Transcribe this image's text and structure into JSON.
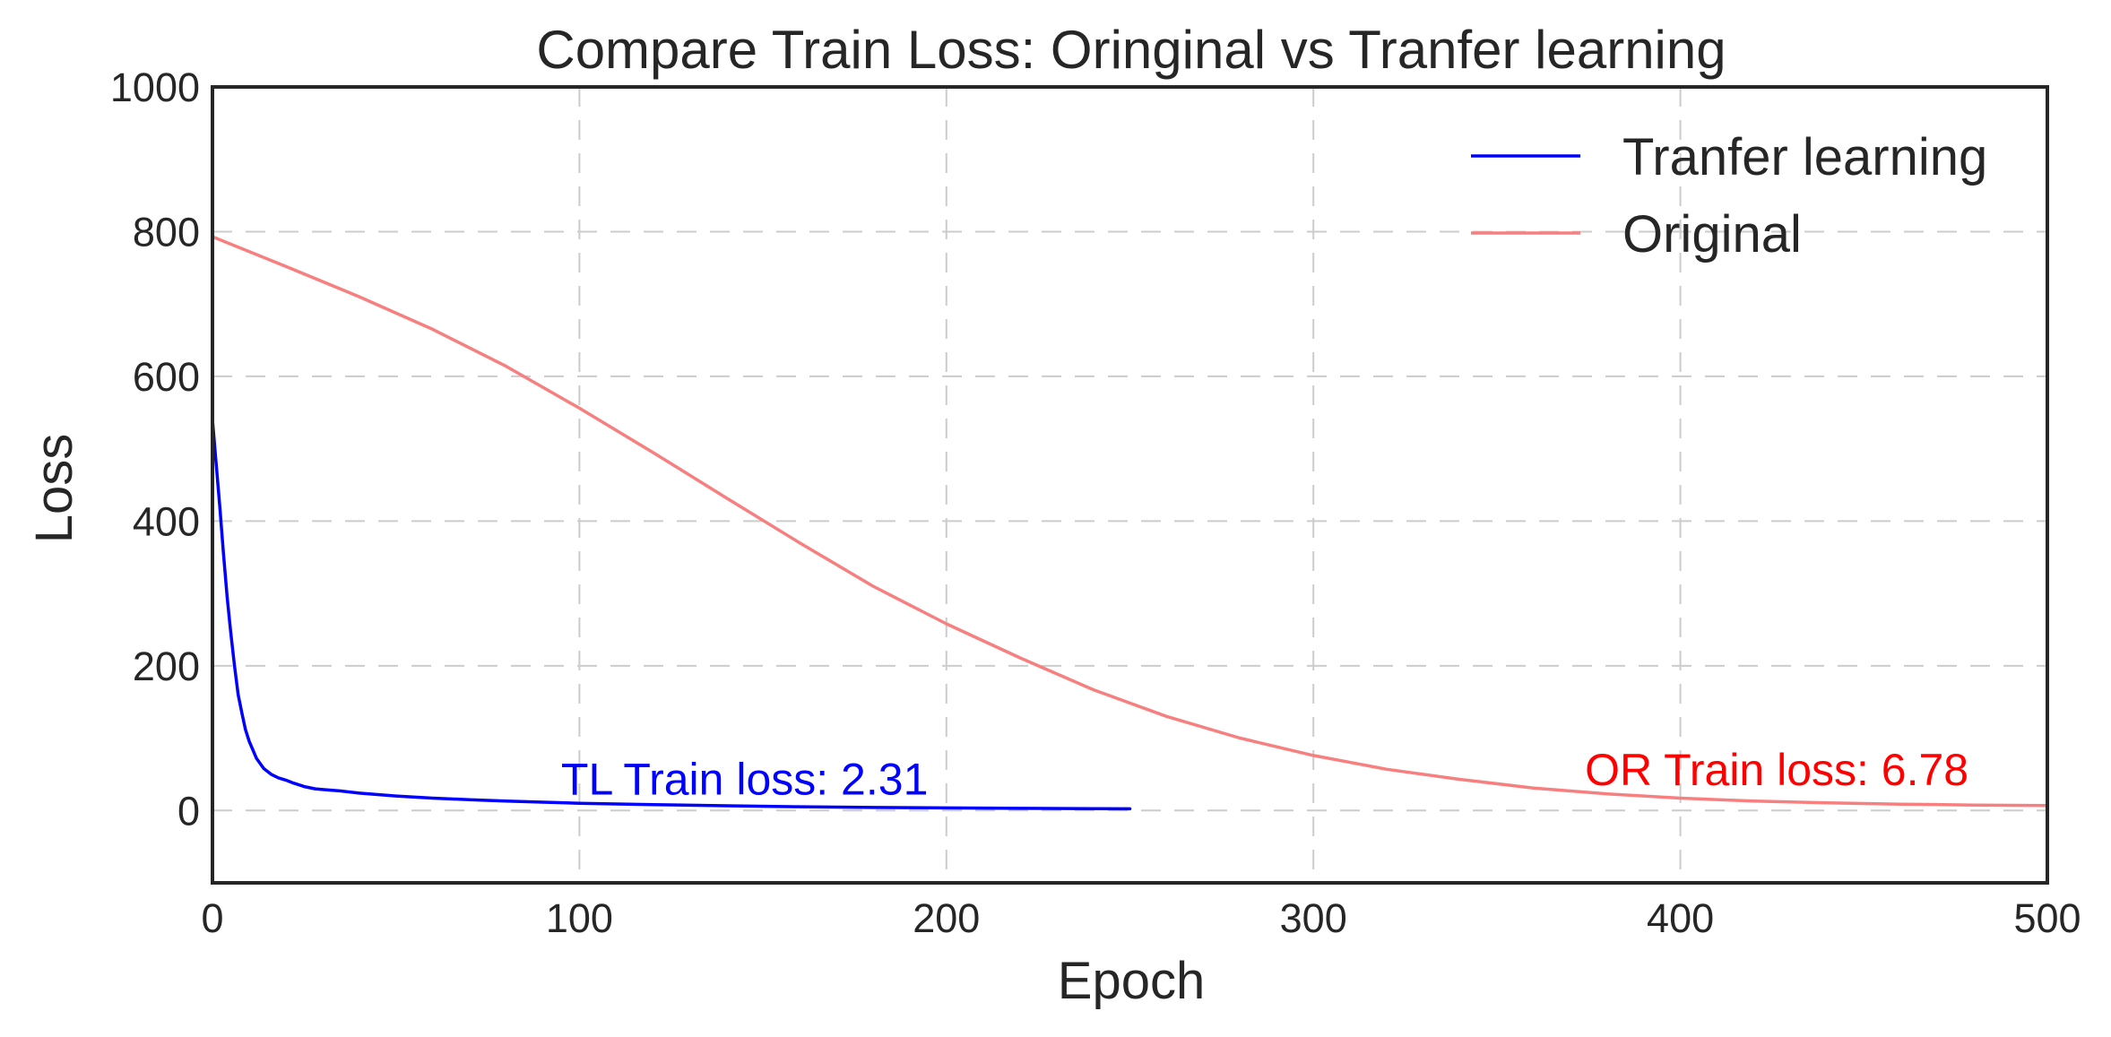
{
  "chart_data": {
    "type": "line",
    "title": "Compare Train Loss: Oringinal vs Tranfer learning",
    "xlabel": "Epoch",
    "ylabel": "Loss",
    "xlim": [
      0,
      500
    ],
    "ylim": [
      -100,
      1000
    ],
    "xticks": [
      0,
      100,
      200,
      300,
      400,
      500
    ],
    "yticks": [
      0,
      200,
      400,
      600,
      800,
      1000
    ],
    "xtick_labels": [
      "0",
      "100",
      "200",
      "300",
      "400",
      "500"
    ],
    "ytick_labels": [
      "0",
      "200",
      "400",
      "600",
      "800",
      "1000"
    ],
    "grid": true,
    "legend_position": "top-right",
    "series": [
      {
        "name": "Tranfer learning",
        "color": "#0000ff",
        "x": [
          0,
          1,
          2,
          3,
          4,
          5,
          6,
          7,
          8,
          9,
          10,
          12,
          14,
          16,
          18,
          20,
          22,
          25,
          28,
          30,
          35,
          40,
          50,
          60,
          70,
          80,
          90,
          100,
          120,
          140,
          160,
          180,
          200,
          220,
          240,
          250
        ],
        "y": [
          540,
          480,
          420,
          355,
          295,
          245,
          200,
          160,
          135,
          112,
          96,
          72,
          58,
          50,
          45,
          42,
          38,
          33,
          30,
          29,
          27,
          24,
          20,
          17,
          15,
          13,
          11.5,
          10,
          8,
          6.5,
          5.2,
          4.2,
          3.5,
          3,
          2.5,
          2.31
        ]
      },
      {
        "name": "Original",
        "color": "#f77f7f",
        "x": [
          0,
          20,
          40,
          60,
          80,
          100,
          120,
          140,
          160,
          180,
          200,
          220,
          240,
          260,
          280,
          300,
          320,
          340,
          360,
          380,
          400,
          420,
          440,
          460,
          480,
          500
        ],
        "y": [
          793,
          752,
          710,
          665,
          614,
          556,
          495,
          432,
          370,
          310,
          258,
          211,
          167,
          130,
          100,
          76,
          57,
          43,
          31,
          23,
          17,
          13,
          10.5,
          8.8,
          7.5,
          6.78
        ]
      }
    ],
    "annotations": [
      {
        "text": "TL Train loss: 2.31",
        "x": 95,
        "y": 22,
        "color": "#0000ff"
      },
      {
        "text": "OR Train loss: 6.78",
        "x": 374,
        "y": 35,
        "color": "#ff0000"
      }
    ],
    "frame_color": "#262626",
    "grid_color": "#cccccc"
  }
}
